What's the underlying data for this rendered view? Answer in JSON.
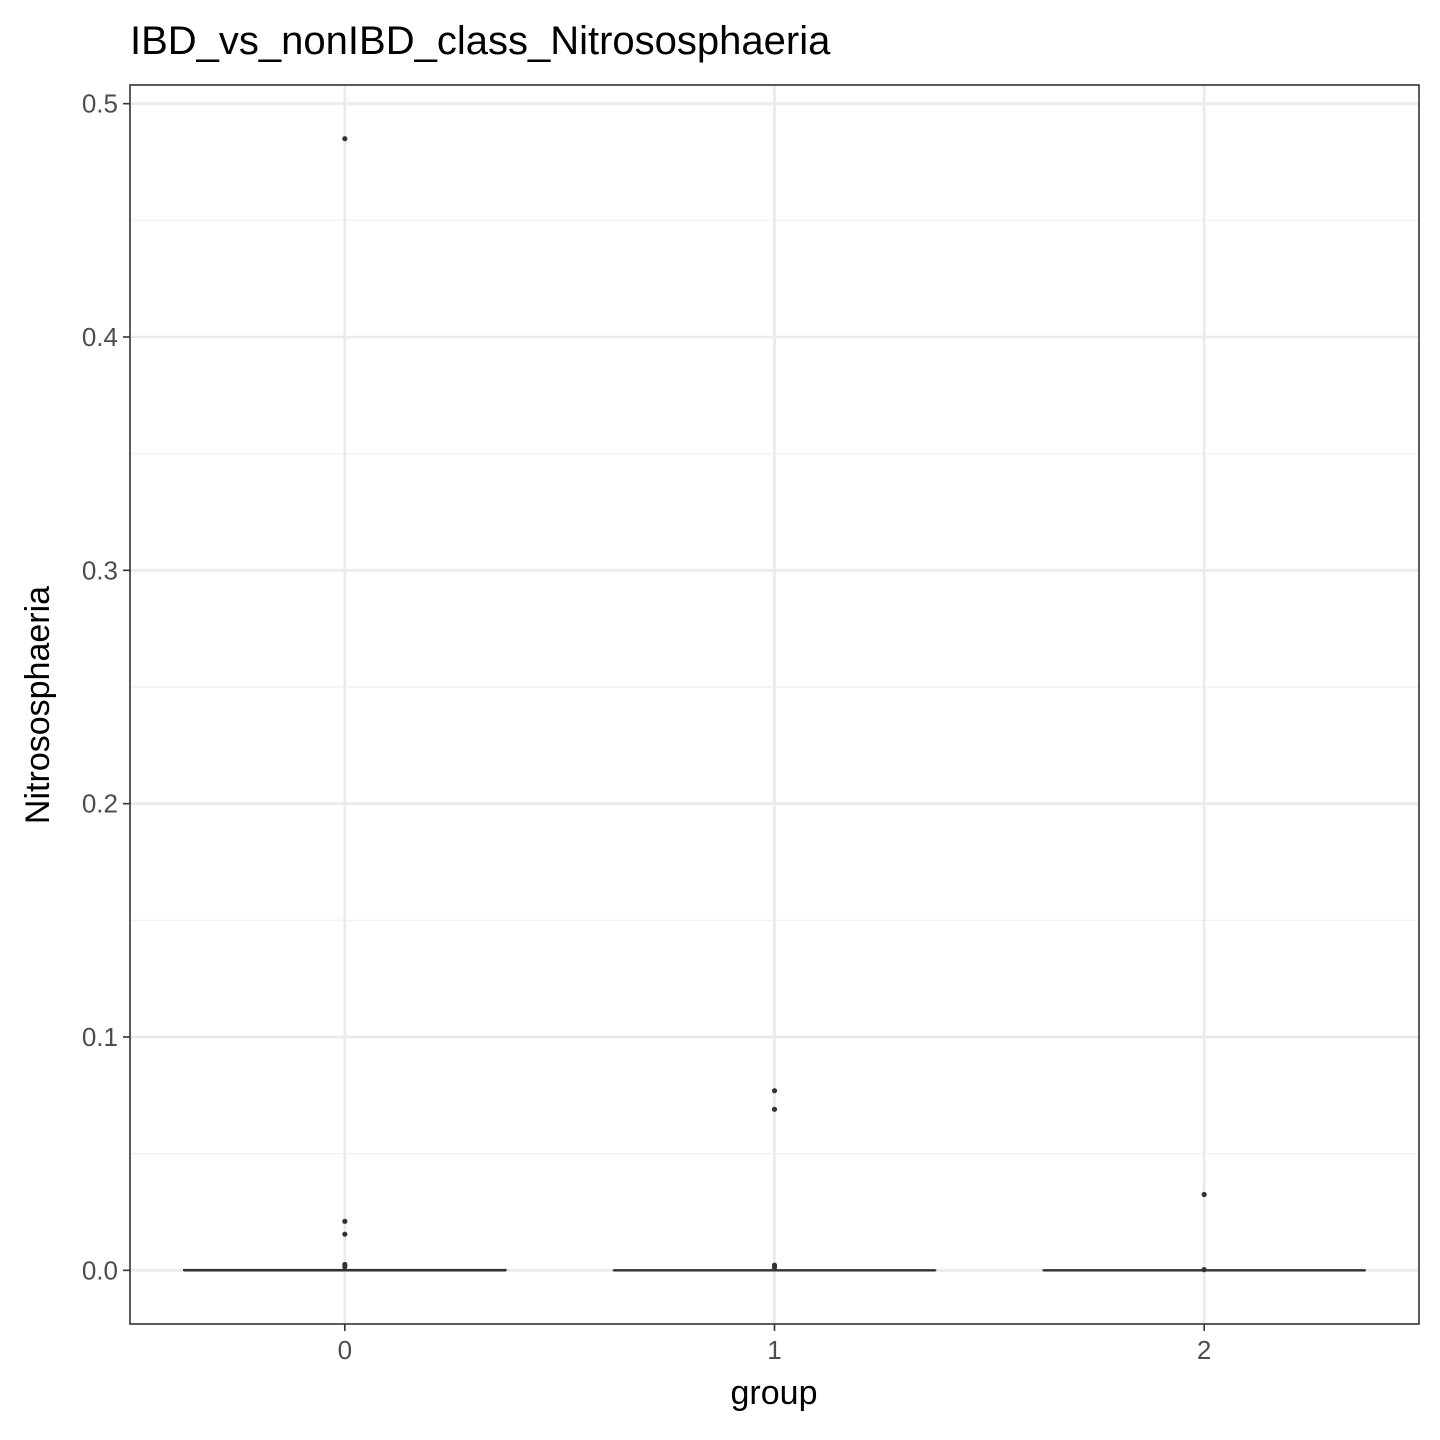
{
  "chart_data": {
    "type": "box",
    "title": "IBD_vs_nonIBD_class_Nitrososphaeria",
    "xlabel": "group",
    "ylabel": "Nitrososphaeria",
    "categories": [
      "0",
      "1",
      "2"
    ],
    "ylim": [
      -0.023,
      0.508
    ],
    "yticks": [
      0.0,
      0.1,
      0.2,
      0.3,
      0.4,
      0.5
    ],
    "ytick_labels": [
      "0.0",
      "0.1",
      "0.2",
      "0.3",
      "0.4",
      "0.5"
    ],
    "grid": true,
    "boxes": [
      {
        "group": "0",
        "q1": 0.0,
        "median": 0.0,
        "q3": 0.0003,
        "whisker_low": 0.0,
        "whisker_high": 0.0008,
        "outliers": [
          0.485,
          0.021,
          0.0155,
          0.0025,
          0.0015
        ]
      },
      {
        "group": "1",
        "q1": 0.0,
        "median": 0.0,
        "q3": 0.0,
        "whisker_low": 0.0,
        "whisker_high": 0.0,
        "outliers": [
          0.077,
          0.069,
          0.0022,
          0.0012
        ]
      },
      {
        "group": "2",
        "q1": 0.0,
        "median": 0.0,
        "q3": 0.0,
        "whisker_low": 0.0,
        "whisker_high": 0.0,
        "outliers": [
          0.0325,
          0.0003
        ]
      }
    ],
    "colors": {
      "panel_border": "#333333",
      "grid_major": "#ebebeb",
      "grid_minor": "#f2f2f2",
      "box": "#333333",
      "tick_text": "#4d4d4d",
      "text": "#000000"
    }
  }
}
